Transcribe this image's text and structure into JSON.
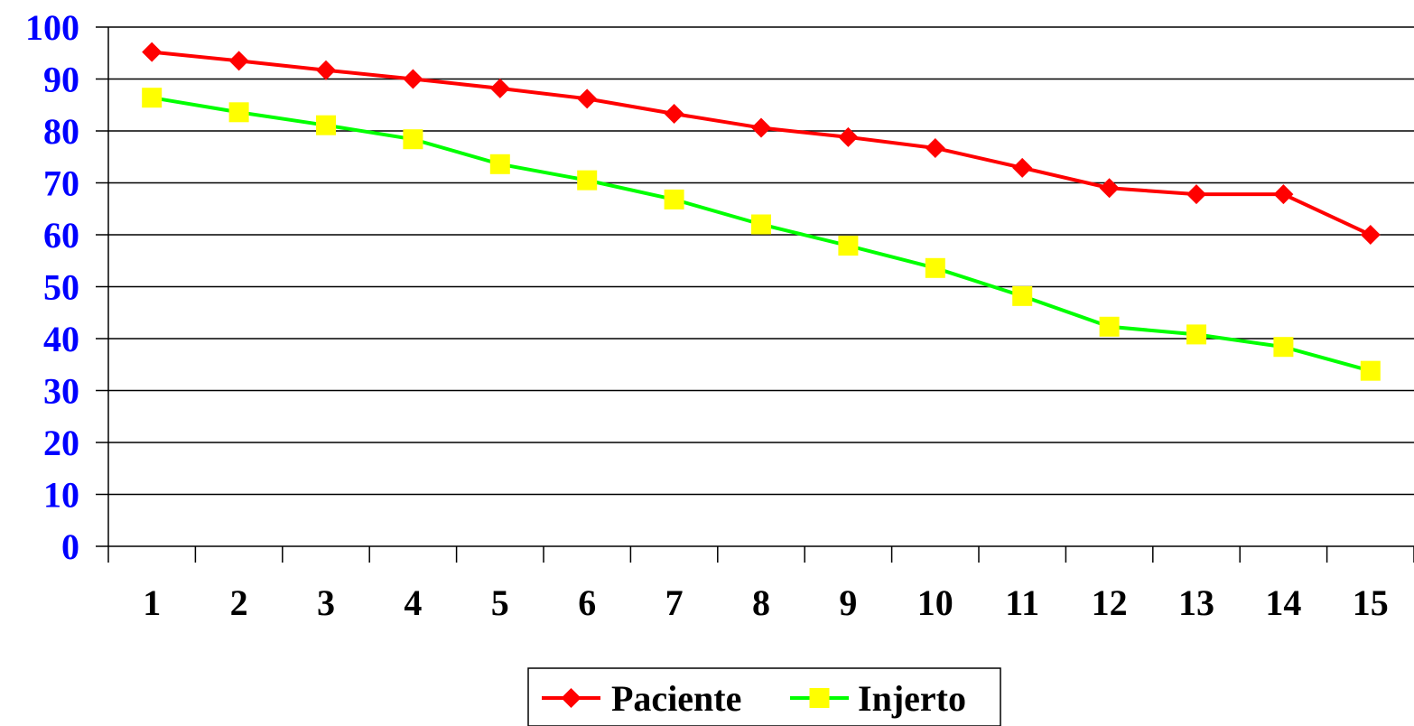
{
  "chart_data": {
    "type": "line",
    "title": "",
    "xlabel": "",
    "ylabel": "",
    "categories": [
      "1",
      "2",
      "3",
      "4",
      "5",
      "6",
      "7",
      "8",
      "9",
      "10",
      "11",
      "12",
      "13",
      "14",
      "15"
    ],
    "yticks": [
      "0",
      "10",
      "20",
      "30",
      "40",
      "50",
      "60",
      "70",
      "80",
      "90",
      "100"
    ],
    "ylim": [
      0,
      100
    ],
    "grid": "horizontal",
    "legend_position": "bottom-center",
    "series": [
      {
        "name": "Paciente",
        "color": "#ff0000",
        "marker": "diamond",
        "values": [
          95.2,
          93.5,
          91.7,
          90.0,
          88.2,
          86.2,
          83.3,
          80.6,
          78.8,
          76.7,
          72.9,
          69.0,
          67.8,
          67.8,
          60.0
        ]
      },
      {
        "name": "Injerto",
        "color": "#00ff00",
        "marker_color": "#ffff00",
        "marker": "square",
        "values": [
          86.4,
          83.6,
          81.1,
          78.4,
          73.6,
          70.5,
          66.8,
          62.0,
          57.9,
          53.6,
          48.2,
          42.3,
          40.8,
          38.4,
          33.8
        ]
      }
    ]
  }
}
